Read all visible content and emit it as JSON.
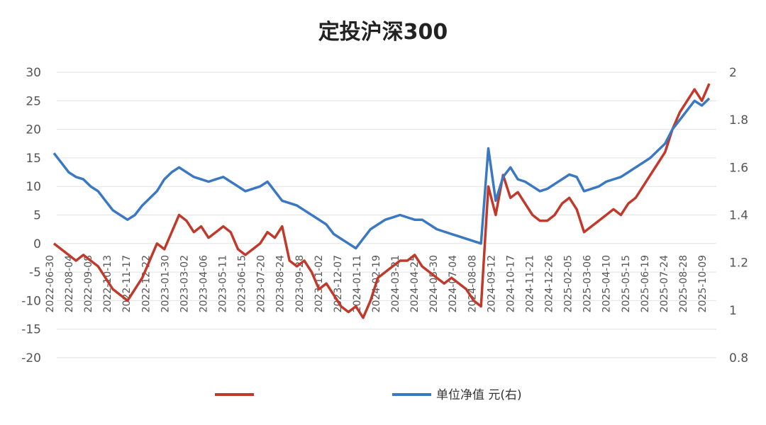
{
  "chart_data": {
    "type": "line",
    "title": "定投沪深300",
    "left_axis": {
      "min": -20,
      "max": 30,
      "ticks": [
        "30",
        "25",
        "20",
        "15",
        "10",
        "5",
        "0",
        "-5",
        "-10",
        "-15",
        "-20"
      ]
    },
    "right_axis": {
      "min": 0.8,
      "max": 2.0,
      "ticks": [
        "2",
        "1.8",
        "1.6",
        "1.4",
        "1.2",
        "1",
        "0.8"
      ]
    },
    "x_labels": [
      "2022-06-30",
      "2022-08-04",
      "2022-09-08",
      "2022-10-13",
      "2022-11-17",
      "2022-12-22",
      "2023-01-30",
      "2023-03-02",
      "2023-04-06",
      "2023-05-11",
      "2023-06-15",
      "2023-07-20",
      "2023-08-24",
      "2023-09-28",
      "2023-11-02",
      "2023-12-07",
      "2024-01-11",
      "2024-02-19",
      "2024-03-21",
      "2024-04-25",
      "2024-05-30",
      "2024-07-04",
      "2024-08-08",
      "2024-09-12",
      "2024-10-17",
      "2024-11-21",
      "2024-12-26",
      "2025-02-05",
      "2025-03-06",
      "2025-04-10",
      "2025-05-15",
      "2025-06-19",
      "2025-07-24",
      "2025-08-28",
      "2025-10-09"
    ],
    "legend": {
      "position": "bottom"
    },
    "series": [
      {
        "name": "",
        "axis": "left",
        "color": "#c0392b",
        "values": [
          0,
          -1,
          -2,
          -3,
          -2,
          -3,
          -4,
          -6,
          -8,
          -9,
          -10,
          -8,
          -6,
          -3,
          0,
          -1,
          2,
          5,
          4,
          2,
          3,
          1,
          2,
          3,
          2,
          -1,
          -2,
          -1,
          0,
          2,
          1,
          3,
          -3,
          -4,
          -3,
          -5,
          -8,
          -7,
          -9,
          -11,
          -12,
          -11,
          -13,
          -10,
          -6,
          -5,
          -4,
          -3,
          -3,
          -2,
          -4,
          -5,
          -6,
          -7,
          -6,
          -7,
          -8,
          -10,
          -11,
          10,
          5,
          12,
          8,
          9,
          7,
          5,
          4,
          4,
          5,
          7,
          8,
          6,
          2,
          3,
          4,
          5,
          6,
          5,
          7,
          8,
          10,
          12,
          14,
          16,
          20,
          23,
          25,
          27,
          25,
          28
        ]
      },
      {
        "name": "单位净值 元(右)",
        "axis": "right",
        "color": "#3b78c2",
        "values": [
          1.66,
          1.62,
          1.58,
          1.56,
          1.55,
          1.52,
          1.5,
          1.46,
          1.42,
          1.4,
          1.38,
          1.4,
          1.44,
          1.47,
          1.5,
          1.55,
          1.58,
          1.6,
          1.58,
          1.56,
          1.55,
          1.54,
          1.55,
          1.56,
          1.54,
          1.52,
          1.5,
          1.51,
          1.52,
          1.54,
          1.5,
          1.46,
          1.45,
          1.44,
          1.42,
          1.4,
          1.38,
          1.36,
          1.32,
          1.3,
          1.28,
          1.26,
          1.3,
          1.34,
          1.36,
          1.38,
          1.39,
          1.4,
          1.39,
          1.38,
          1.38,
          1.36,
          1.34,
          1.33,
          1.32,
          1.31,
          1.3,
          1.29,
          1.28,
          1.68,
          1.46,
          1.56,
          1.6,
          1.55,
          1.54,
          1.52,
          1.5,
          1.51,
          1.53,
          1.55,
          1.57,
          1.56,
          1.5,
          1.51,
          1.52,
          1.54,
          1.55,
          1.56,
          1.58,
          1.6,
          1.62,
          1.64,
          1.67,
          1.7,
          1.76,
          1.8,
          1.84,
          1.88,
          1.86,
          1.89
        ]
      }
    ]
  }
}
